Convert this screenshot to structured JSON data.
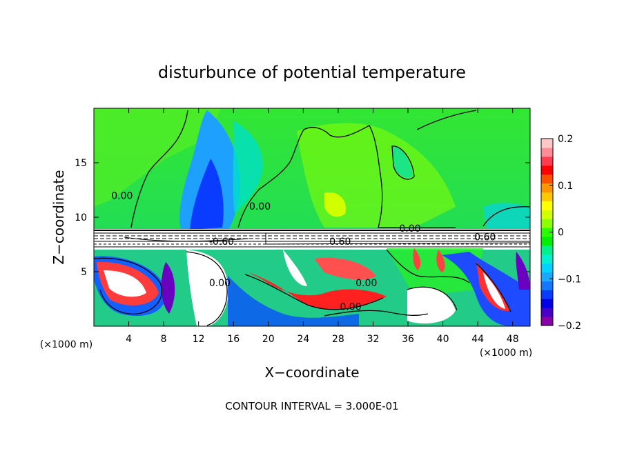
{
  "chart_data": {
    "type": "heatmap",
    "title": "disturbunce of potential temperature",
    "xlabel": "X−coordinate",
    "ylabel": "Z−coordinate",
    "x_unit": "(×1000 m)",
    "x_unit_right": "(×1000 m)",
    "xlim": [
      0,
      50
    ],
    "ylim": [
      0,
      20
    ],
    "x_ticks": [
      4,
      8,
      12,
      16,
      20,
      24,
      28,
      32,
      36,
      40,
      44,
      48
    ],
    "x_tick_labels": [
      "4",
      "8",
      "12",
      "16",
      "20",
      "24",
      "28",
      "32",
      "36",
      "40",
      "44",
      "48"
    ],
    "y_ticks": [
      5,
      10,
      15
    ],
    "y_tick_labels": [
      "5",
      "10",
      "15"
    ],
    "colorbar": {
      "range": [
        -0.2,
        0.2
      ],
      "ticks": [
        0.2,
        0.1,
        0,
        -0.1,
        -0.2
      ],
      "tick_labels": [
        "0.2",
        "0.1",
        "0",
        "−0.1",
        "−0.2"
      ],
      "colors": [
        "#8a00a8",
        "#4b00c8",
        "#0000e6",
        "#0a3cff",
        "#1478ff",
        "#19aaff",
        "#00d2ff",
        "#00f0d2",
        "#00f08c",
        "#00f000",
        "#28ff00",
        "#8cff00",
        "#d2ff00",
        "#ffff00",
        "#ffc800",
        "#ff9600",
        "#ff5000",
        "#ff0000",
        "#ff3c50",
        "#ff8c96",
        "#ffc8c8"
      ]
    },
    "contour_interval_text": "CONTOUR INTERVAL = 3.000E-01",
    "contour_labels": [
      {
        "text": "0.00",
        "x": 2.0,
        "z": 12.0
      },
      {
        "text": "0.00",
        "x": 17.8,
        "z": 11.0
      },
      {
        "text": "0.00",
        "x": 35.0,
        "z": 9.0
      },
      {
        "text": "-0.60",
        "x": 13.2,
        "z": 7.8
      },
      {
        "text": "0.60",
        "x": 27.0,
        "z": 7.8
      },
      {
        "text": "0.60",
        "x": 43.6,
        "z": 8.2
      },
      {
        "text": "0.00",
        "x": 13.2,
        "z": 4.0
      },
      {
        "text": "0.00",
        "x": 30.0,
        "z": 4.0
      },
      {
        "text": "0.00",
        "x": 28.2,
        "z": 1.8
      }
    ]
  }
}
